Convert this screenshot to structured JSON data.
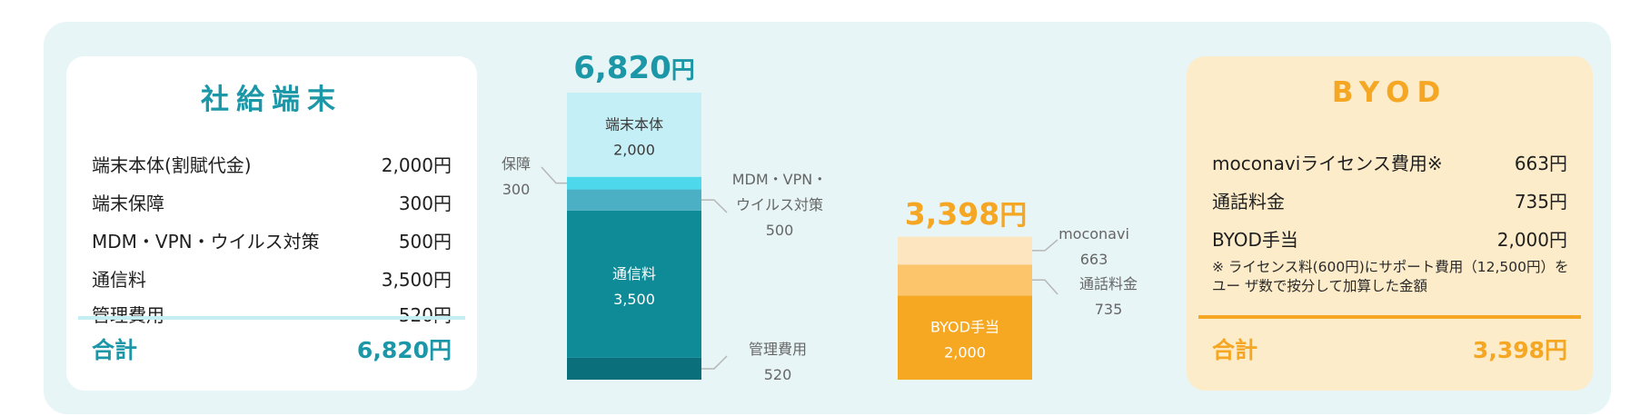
{
  "company_card": {
    "title": "社給端末",
    "rows": [
      {
        "label": "端末本体(割賦代金)",
        "value": "2,000円"
      },
      {
        "label": "端末保障",
        "value": "300円"
      },
      {
        "label": "MDM・VPN・ウイルス対策",
        "value": "500円"
      },
      {
        "label": "通信料",
        "value": "3,500円"
      },
      {
        "label": "管理費用",
        "value": "520円"
      }
    ],
    "total_label": "合計",
    "total_value": "6,820円"
  },
  "byod_card": {
    "title": "BYOD",
    "rows": [
      {
        "label": "moconaviライセンス費用※",
        "value": "663円"
      },
      {
        "label": "通話料金",
        "value": "735円"
      },
      {
        "label": "BYOD手当",
        "value": "2,000円"
      }
    ],
    "note": "※ ライセンス料(600円)にサポート費用（12,500円）をユー ザ数で按分して加算した金額",
    "total_label": "合計",
    "total_value": "3,398円"
  },
  "colors": {
    "panel": "#e7f5f6",
    "teal_text": "#1b97a8",
    "orange_text": "#f5a623",
    "byod_card_bg": "#fdecc9"
  },
  "chart_data": {
    "type": "bar",
    "stacked": true,
    "bars": [
      {
        "total": 6820,
        "total_number": "6,820",
        "total_unit": "円",
        "total_color": "#1b97a8",
        "segments": [
          {
            "key": "管理費用",
            "value": 520,
            "color": "#0b6e7b",
            "label": "管理費用",
            "label_lines": [
              "管理費用",
              "520"
            ],
            "label_position": "outside-right-bottom"
          },
          {
            "key": "通信料",
            "value": 3500,
            "color": "#0f8b98",
            "label_lines": [
              "通信料",
              "3,500"
            ],
            "label_position": "inside",
            "label_color": "#ffffff"
          },
          {
            "key": "MDM・VPN・ウイルス対策",
            "value": 500,
            "color": "#4bb0c3",
            "label_lines": [
              "MDM・VPN・",
              "ウイルス対策",
              "500"
            ],
            "label_position": "outside-right"
          },
          {
            "key": "保障",
            "value": 300,
            "color": "#4dd8ec",
            "label_lines": [
              "保障",
              "300"
            ],
            "label_position": "outside-left"
          },
          {
            "key": "端末本体",
            "value": 2000,
            "color": "#c5eff6",
            "label_lines": [
              "端末本体",
              "2,000"
            ],
            "label_position": "inside",
            "label_color": "#3a3a3a"
          }
        ]
      },
      {
        "total": 3398,
        "total_number": "3,398",
        "total_unit": "円",
        "total_color": "#f5a623",
        "segments": [
          {
            "key": "BYOD手当",
            "value": 2000,
            "color": "#f7a823",
            "label_lines": [
              "BYOD手当",
              "2,000"
            ],
            "label_position": "inside",
            "label_color": "#ffffff"
          },
          {
            "key": "通話料金",
            "value": 735,
            "color": "#fcc46b",
            "label_lines": [
              "通話料金",
              "735"
            ],
            "label_position": "outside-right"
          },
          {
            "key": "moconavi",
            "value": 663,
            "color": "#fde6bf",
            "label_lines": [
              "moconavi",
              "663"
            ],
            "label_position": "outside-right"
          }
        ]
      }
    ],
    "ylim": [
      0,
      6820
    ],
    "grid": false,
    "legend": "none"
  }
}
